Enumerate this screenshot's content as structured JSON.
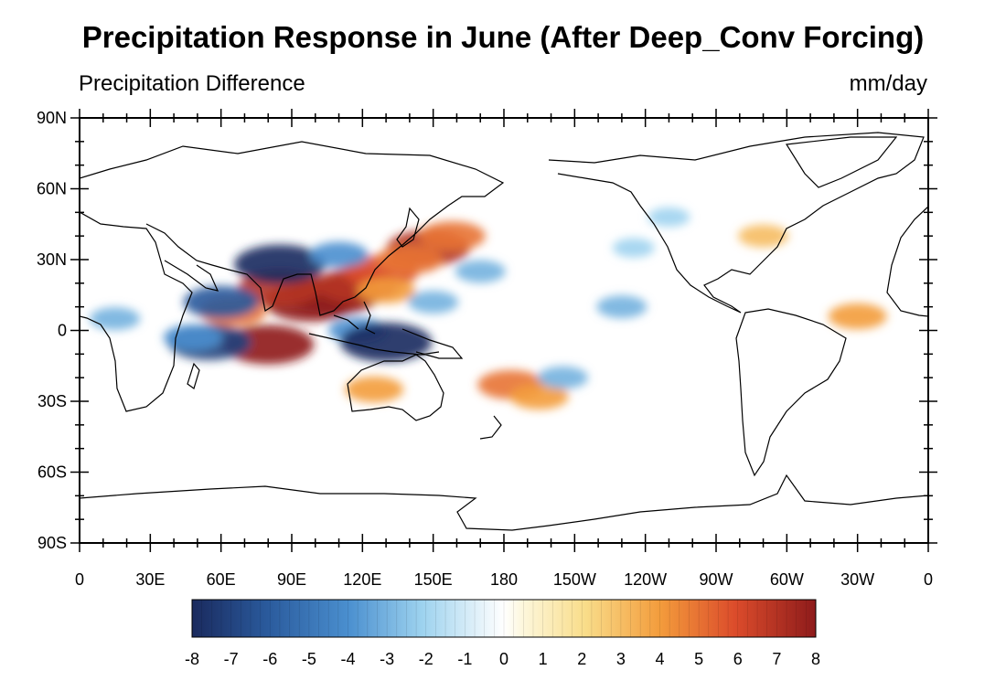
{
  "title": "Precipitation Response in June (After Deep_Conv Forcing)",
  "subtitle_left": "Precipitation Difference",
  "subtitle_right": "mm/day",
  "map": {
    "lat_labels": [
      "90N",
      "60N",
      "30N",
      "0",
      "30S",
      "60S",
      "90S"
    ],
    "lon_labels": [
      "0",
      "30E",
      "60E",
      "90E",
      "120E",
      "150E",
      "180",
      "150W",
      "120W",
      "90W",
      "60W",
      "30W",
      "0"
    ]
  },
  "colorbar": {
    "labels": [
      "-8",
      "-7",
      "-6",
      "-5",
      "-4",
      "-3",
      "-2",
      "-1",
      "0",
      "1",
      "2",
      "3",
      "4",
      "5",
      "6",
      "7",
      "8"
    ],
    "min": -8,
    "max": 8
  },
  "anomalies": [
    {
      "lon": 98,
      "lat": 12,
      "value": 8
    },
    {
      "lon": 108,
      "lat": 15,
      "value": 8
    },
    {
      "lon": 118,
      "lat": 19,
      "value": 7
    },
    {
      "lon": 128,
      "lat": 25,
      "value": 6
    },
    {
      "lon": 148,
      "lat": 35,
      "value": 7
    },
    {
      "lon": 158,
      "lat": 40,
      "value": 5
    },
    {
      "lon": 85,
      "lat": 18,
      "value": 7
    },
    {
      "lon": 80,
      "lat": -6,
      "value": 8
    },
    {
      "lon": 65,
      "lat": 8,
      "value": 5
    },
    {
      "lon": 130,
      "lat": 17,
      "value": 4
    },
    {
      "lon": 140,
      "lat": 30,
      "value": 5
    },
    {
      "lon": 125,
      "lat": -25,
      "value": 4
    },
    {
      "lon": 183,
      "lat": -23,
      "value": 5
    },
    {
      "lon": 195,
      "lat": -28,
      "value": 4
    },
    {
      "lon": 330,
      "lat": 6,
      "value": 4
    },
    {
      "lon": 290,
      "lat": 40,
      "value": 3
    },
    {
      "lon": 60,
      "lat": 12,
      "value": -6
    },
    {
      "lon": 85,
      "lat": 28,
      "value": -8
    },
    {
      "lon": 55,
      "lat": -5,
      "value": -7
    },
    {
      "lon": 48,
      "lat": -3,
      "value": -4
    },
    {
      "lon": 118,
      "lat": 0,
      "value": -4
    },
    {
      "lon": 130,
      "lat": -5,
      "value": -8
    },
    {
      "lon": 110,
      "lat": 32,
      "value": -4
    },
    {
      "lon": 150,
      "lat": 12,
      "value": -3
    },
    {
      "lon": 170,
      "lat": 25,
      "value": -3
    },
    {
      "lon": 205,
      "lat": -20,
      "value": -3
    },
    {
      "lon": 230,
      "lat": 10,
      "value": -3
    },
    {
      "lon": 15,
      "lat": 5,
      "value": -3
    },
    {
      "lon": 235,
      "lat": 35,
      "value": -2
    },
    {
      "lon": 250,
      "lat": 48,
      "value": -2
    }
  ]
}
